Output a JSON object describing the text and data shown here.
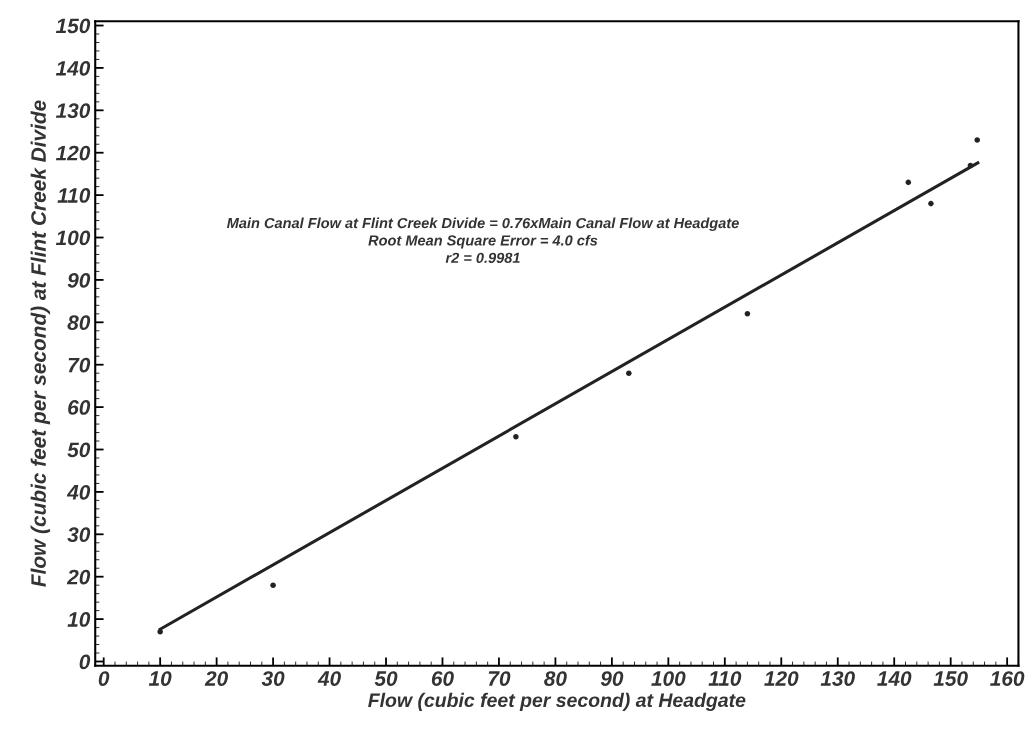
{
  "chart_data": {
    "type": "scatter",
    "xlabel": "Flow (cubic feet per second) at Headgate",
    "ylabel": "Flow (cubic feet per second) at Flint Creek Divide",
    "annotations": [
      "Main Canal Flow at Flint Creek Divide = 0.76xMain Canal Flow at Headgate",
      "Root Mean Square Error = 4.0 cfs",
      "r2 = 0.9981"
    ],
    "series": [
      {
        "color": "#222222",
        "x": [
          10,
          30,
          73,
          93,
          114,
          142.5,
          146.5,
          153.5,
          154.7
        ],
        "values": [
          7,
          18,
          53,
          68,
          82,
          113,
          108,
          117,
          123
        ]
      },
      {
        "type": "line",
        "color": "#222222",
        "x": [
          10,
          154.8
        ],
        "values": [
          7.6,
          117.6
        ]
      }
    ],
    "xlim": [
      -1.5,
      162
    ],
    "ylim": [
      -1,
      151
    ],
    "xticks": [
      0,
      10,
      20,
      30,
      40,
      50,
      60,
      70,
      80,
      90,
      100,
      110,
      120,
      130,
      140,
      150,
      160
    ],
    "yticks": [
      0,
      10,
      20,
      30,
      40,
      50,
      60,
      70,
      80,
      90,
      100,
      110,
      120,
      130,
      140,
      150
    ],
    "grid": false,
    "legend": false
  }
}
